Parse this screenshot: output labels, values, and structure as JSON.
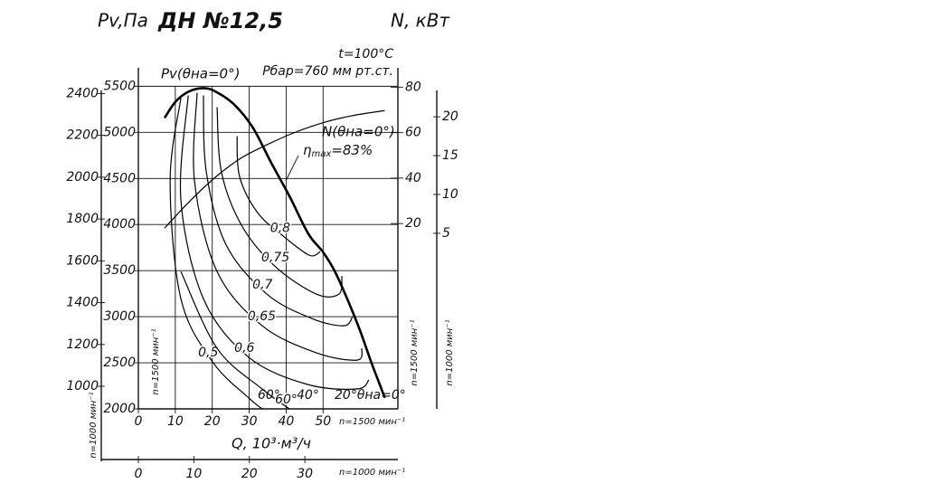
{
  "chart_data": {
    "type": "line",
    "title": "ДН №12,5",
    "y_label": "Pv,Па",
    "y2_label": "N, кВт",
    "x_label": "Q, 10³·м³/ч",
    "conditions": [
      "t=100°C",
      "Рбар=760 мм рт.ст."
    ],
    "pv_label": "Pv(θна=0°)",
    "n_label": "N(θна=0°)",
    "eta_label": {
      "symbol": "η",
      "sub": "max",
      "text": "=83%"
    },
    "angle_labels": [
      "60°",
      "40°",
      "20°θна=0°"
    ],
    "rpm_labels": {
      "left_1500": "n=1500 мин⁻¹",
      "left_1000": "n=1000 мин⁻¹",
      "right_1500": "n=1500 мин⁻¹",
      "right_1000": "n=1000 мин⁻¹",
      "bottom_1500": "n=1500 мин⁻¹",
      "bottom_1000": "n=1000 мин⁻¹"
    },
    "xlim": [
      0,
      70
    ],
    "xticks": [
      0,
      10,
      20,
      30,
      40,
      50
    ],
    "ylim": [
      2000,
      5700
    ],
    "yticks": [
      2000,
      2500,
      3000,
      3500,
      4000,
      4500,
      5000,
      5500
    ],
    "y2lim": [
      -61.5,
      88.5
    ],
    "y2ticks": [
      20,
      40,
      60,
      80
    ],
    "y3lim": [
      892,
      2523
    ],
    "y3ticks": [
      1000,
      1200,
      1400,
      1600,
      1800,
      2000,
      2200,
      2400
    ],
    "y4lim": [
      -17.6,
      26.3
    ],
    "y4ticks": [
      5,
      10,
      15,
      20
    ],
    "x2lim": [
      0,
      46.6
    ],
    "x2ticks": [
      0,
      10,
      20,
      30
    ],
    "series": [
      {
        "name": "Pv(θна=0°)",
        "color": "#000",
        "width": 2.6,
        "x": [
          7.1,
          10,
          13.5,
          17.6,
          21,
          26,
          31,
          36,
          41,
          46,
          50,
          53.2,
          57,
          60,
          63,
          65,
          66.7
        ],
        "values": [
          5157,
          5330,
          5440,
          5480,
          5440,
          5300,
          5050,
          4667,
          4300,
          3900,
          3700,
          3490,
          3150,
          2850,
          2510,
          2300,
          2120
        ]
      },
      {
        "name": "N(θна=0°)",
        "color": "#000",
        "width": 1.2,
        "axis": "y2",
        "x": [
          7.1,
          14,
          21.3,
          28,
          36,
          43,
          50.7,
          58,
          66.7
        ],
        "values": [
          18,
          30,
          41,
          49,
          55.6,
          60.5,
          64.7,
          67.5,
          69.7
        ]
      },
      {
        "name": "0,8",
        "color": "#000",
        "width": 1.2,
        "x": [
          26.7,
          27.4,
          32.3,
          39.6,
          46.3,
          49.2
        ],
        "values": [
          4960,
          4519,
          4127,
          3862,
          3666,
          3705
        ]
      },
      {
        "name": "0,75",
        "color": "#000",
        "width": 1.2,
        "x": [
          21.3,
          22.5,
          28.1,
          37.2,
          48.2,
          54.3,
          55.1
        ],
        "values": [
          5273,
          4568,
          3980,
          3539,
          3245,
          3245,
          3441
        ]
      },
      {
        "name": "0,7",
        "color": "#000",
        "width": 1.2,
        "x": [
          17.6,
          18.4,
          23.7,
          34.8,
          47,
          55.6,
          58
        ],
        "values": [
          5401,
          4568,
          3784,
          3245,
          2980,
          2902,
          3000
        ]
      },
      {
        "name": "0,65",
        "color": "#000",
        "width": 1.2,
        "x": [
          15.9,
          15.2,
          21.3,
          33.5,
          48.2,
          59.2,
          60.5
        ],
        "values": [
          5430,
          4470,
          3490,
          2902,
          2608,
          2529,
          2657
        ]
      },
      {
        "name": "0,6",
        "color": "#000",
        "width": 1.2,
        "x": [
          13.5,
          11.5,
          17.6,
          29.9,
          45.8,
          59.2,
          62.4
        ],
        "values": [
          5401,
          4274,
          3196,
          2559,
          2265,
          2216,
          2314
        ]
      },
      {
        "name": "0,5",
        "color": "#000",
        "width": 1.2,
        "x": [
          11.5,
          8.6,
          11.5,
          20.1,
          29.9,
          33.5
        ],
        "values": [
          5371,
          4470,
          3196,
          2510,
          2118,
          2000
        ]
      },
      {
        "name": "60°",
        "color": "#000",
        "width": 1.2,
        "x": [
          11.5,
          21.3,
          33.5,
          40.9
        ],
        "values": [
          3490,
          2657,
          2216,
          2000
        ]
      }
    ]
  }
}
